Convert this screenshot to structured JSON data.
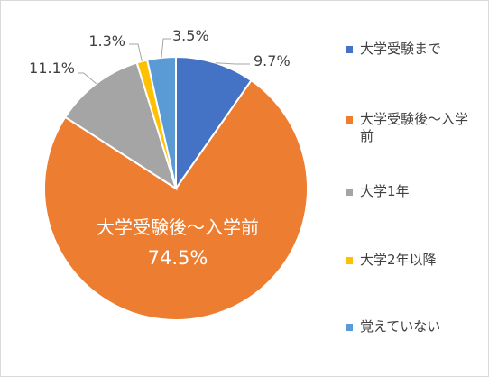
{
  "chart_data": {
    "type": "pie",
    "categories": [
      "大学受験まで",
      "大学受験後～入学前",
      "大学1年",
      "大学2年以降",
      "覚えていない"
    ],
    "values": [
      9.7,
      74.5,
      11.1,
      1.3,
      3.5
    ],
    "labels": [
      "9.7%",
      "74.5%",
      "11.1%",
      "1.3%",
      "3.5%"
    ],
    "colors": [
      "#4472c4",
      "#ed7d31",
      "#a5a5a5",
      "#ffc000",
      "#5b9bd5"
    ],
    "inside_label_name": "大学受験後～入学前",
    "inside_label_value": "74.5%",
    "legend_position": "right",
    "start_angle_deg": 0,
    "direction": "clockwise"
  }
}
